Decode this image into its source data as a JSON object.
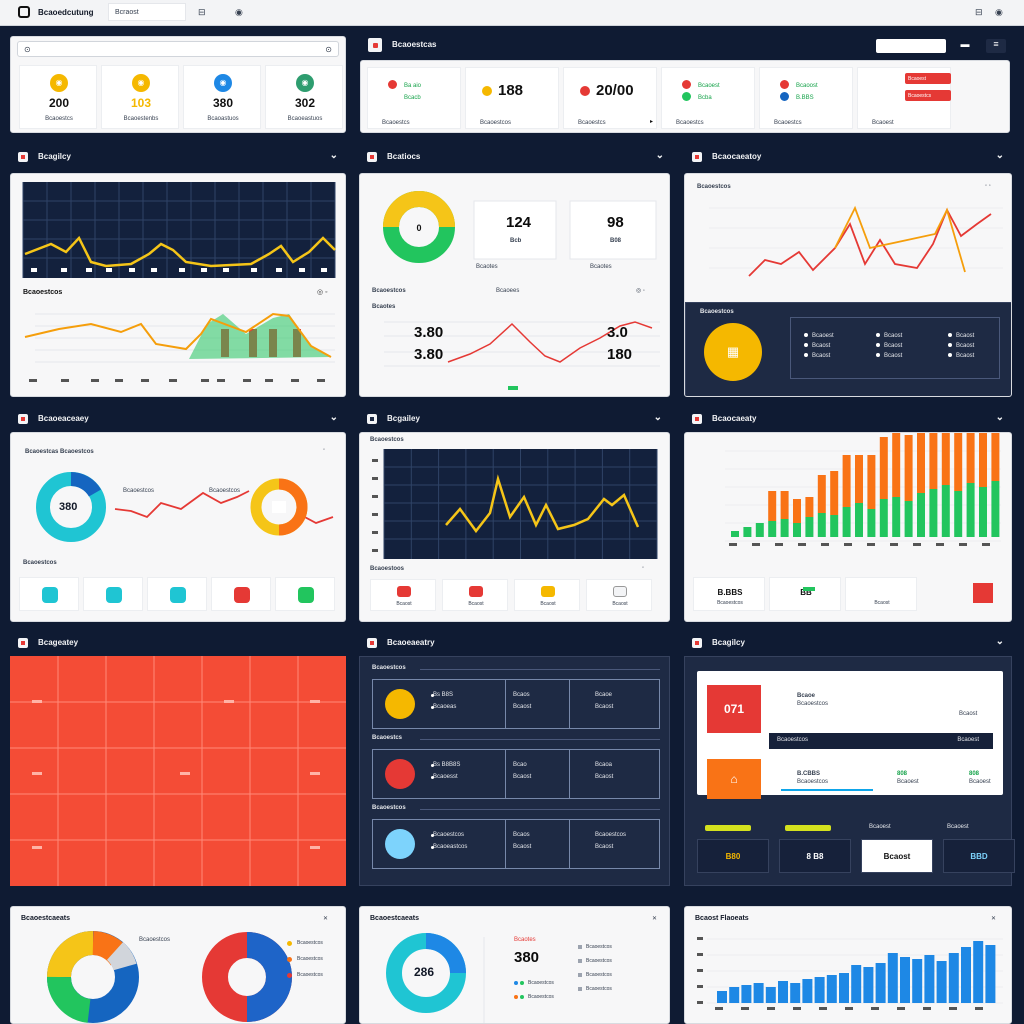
{
  "topbar": {
    "logo": "a",
    "title": "Bcaoedcutung",
    "tab": "Bcraost",
    "icon1": "⊟",
    "icon2": "◉"
  },
  "row1": {
    "search_placeholder": "",
    "kpis": [
      {
        "value": "200",
        "label": "Bcaoestcs",
        "color": "#f5b800"
      },
      {
        "value": "103",
        "label": "Bcaoestenbs",
        "color": "#f5b800"
      },
      {
        "value": "380",
        "label": "Bcaoastuos",
        "color": "#1e88e5"
      },
      {
        "value": "302",
        "label": "Bcaoeastuos",
        "color": "#2e9d6f"
      }
    ],
    "title": "Bcaoestcas",
    "stats": [
      {
        "value": "",
        "label": "Bcaoestcs",
        "sub": "Ba aio\nBcacb"
      },
      {
        "value": "188",
        "label": "Bcaoestcos"
      },
      {
        "value": "20/00",
        "label": "Bcaoestcs"
      },
      {
        "value": "",
        "label": "Bcaoestcs",
        "sub": "Bcaoest\nBcba"
      },
      {
        "value": "",
        "label": "Bcaoestcs",
        "sub": "Bcaoost\nB.BBS"
      },
      {
        "value": "",
        "label": "Bcaoest"
      }
    ],
    "btn1": "Bcaoest",
    "btn2": "Bcaoestcs"
  },
  "panels": {
    "p1": {
      "title": "Bcagilcy",
      "sub": "Bcaoestcos"
    },
    "p2": {
      "title": "Bcatiocs",
      "n1": "124",
      "n1s": "Bcb",
      "n2": "98",
      "n2s": "B08",
      "sub": "Bcaoestcos",
      "sub2": "Bcaoees",
      "small": "Bcaotes",
      "v1": "3.80",
      "v2": "3.80",
      "v3": "3.0",
      "v4": "180"
    },
    "p3": {
      "title": "Bcaocaeatoy",
      "sub": "Bcaoestcos",
      "box": "Bcaoestcos",
      "items": [
        "Bcaoest",
        "Bcaost",
        "Bcaost",
        "Bcaost",
        "Bcaost",
        "Bcaost",
        "Bcaost",
        "Bcaost",
        "Bcaost"
      ]
    },
    "p4": {
      "title": "Bcaoeaceaey",
      "sub": "Bcaoestcas Bcaoestcos",
      "donut": "380",
      "lbl": "Bcaoestcos",
      "sub2": "Bcaoestcos"
    },
    "p5": {
      "title": "Bcgailey",
      "sub": "Bcaoestcos",
      "sub2": "Bcaoestoos",
      "btn": [
        "Bcaost",
        "Bcaost",
        "Bcaost",
        "Bcaost"
      ]
    },
    "p6": {
      "title": "Bcaocaeaty",
      "tiles": [
        {
          "a": "B.BBS",
          "b": "Bcaoestcos"
        },
        {
          "a": "BB",
          "b": ""
        },
        {
          "a": "",
          "b": "Bcaost"
        }
      ]
    },
    "p7": {
      "title": "Bcageatey"
    },
    "p8": {
      "title": "Bcaoeaeatry",
      "groups": [
        {
          "h": "Bcaoestcos",
          "l1": "Bs B8S",
          "l2": "Bcaoeas",
          "m": "Bcaos",
          "m2": "Bcaost",
          "r": "Bcaoe",
          "r2": "Bcaost"
        },
        {
          "h": "Bcaoestcs",
          "l1": "Bs B8B8S",
          "l2": "Bcaoesst",
          "m": "Bcao",
          "m2": "Bcaost",
          "r": "Bcaoa",
          "r2": "Bcaost"
        },
        {
          "h": "Bcaoestcos",
          "l1": "Bcaoestcos",
          "l2": "Bcaoeastcos",
          "m": "Bcaos",
          "m2": "Bcaost",
          "r": "Bcaoestcos",
          "r2": "Bcaost"
        }
      ]
    },
    "p9": {
      "title": "Bcagilcy",
      "v1": "071",
      "a": "Bcaoe",
      "b": "Bcaoestcos",
      "c": "Bcaost",
      "d": "B.CBBS",
      "e": "Bcaoestcos",
      "f": "808",
      "g": "808",
      "h": "Bcaoest",
      "i": "Bcaoest",
      "k1": "B80",
      "k2": "8 B8",
      "k3": "Bcaost",
      "k4": "BBD"
    },
    "p10": {
      "title": "Bcaoestcaeats",
      "l": [
        "Bcaoestcos",
        "Bcaoestcos",
        "Bcaoestcos"
      ]
    },
    "p11": {
      "title": "Bcaoestcaeats",
      "donut": "286",
      "v": "380",
      "l": [
        "Bcaoestcos",
        "Bcaoestcos",
        "Bcaoestcos"
      ]
    },
    "p12": {
      "title": "Bcaost Flaoeats"
    }
  },
  "colors": {
    "bg": "#0f1b33",
    "accent": "#f5b800",
    "red": "#e53935",
    "green": "#22c55e",
    "blue": "#1e88e5",
    "orange": "#f97316"
  }
}
